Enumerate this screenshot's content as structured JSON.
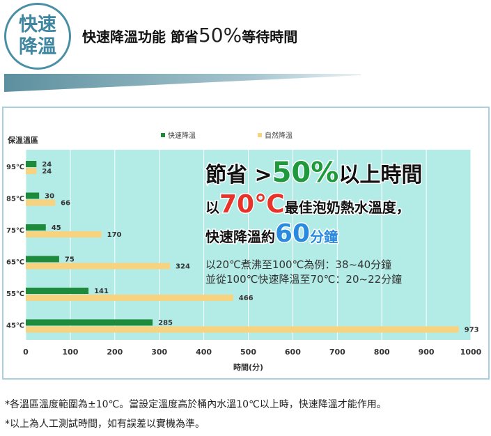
{
  "header": {
    "badge_line1": "快速",
    "badge_line2": "降溫",
    "title_prefix": "快速降溫功能 節省",
    "title_number": "50%",
    "title_suffix": "等待時間"
  },
  "chart_data": {
    "type": "bar",
    "orientation": "horizontal",
    "categories": [
      "95℃",
      "85℃",
      "75℃",
      "65℃",
      "55℃",
      "45℃"
    ],
    "series": [
      {
        "name": "快速降溫",
        "color": "#1e8a3c",
        "values": [
          24,
          30,
          45,
          75,
          141,
          285
        ]
      },
      {
        "name": "自然降溫",
        "color": "#f8d37f",
        "values": [
          24,
          66,
          170,
          324,
          466,
          973
        ]
      }
    ],
    "xlabel": "時間(分)",
    "ylabel": "保溫溫區",
    "xlim": [
      0,
      1000
    ],
    "xticks": [
      0,
      100,
      200,
      300,
      400,
      500,
      600,
      700,
      800,
      900,
      1000
    ],
    "grid": "vertical",
    "legend": "top",
    "background": "#b3ebe6"
  },
  "callout": {
    "line1_a": "節省 >",
    "line1_b": "50%",
    "line1_c": "以上時間",
    "line2_a": "以",
    "line2_b": "70℃",
    "line2_c": "最佳泡奶熱水溫度，",
    "line3_a": "快速降溫約",
    "line3_b": "60",
    "line3_c": "分鐘",
    "line4": "以20℃煮沸至100℃為例：38~40分鐘",
    "line5": "並從100℃快速降溫至70℃：20~22分鐘",
    "color_green": "#1e9a3c",
    "color_red": "#e8332a",
    "color_blue": "#2a8ae0"
  },
  "notes": {
    "line1": "*各溫區溫度範圍為±10℃。當設定溫度高於桶內水溫10℃以上時，快速降溫才能作用。",
    "line2": "*以上為人工測試時間，如有誤差以實機為準。"
  }
}
